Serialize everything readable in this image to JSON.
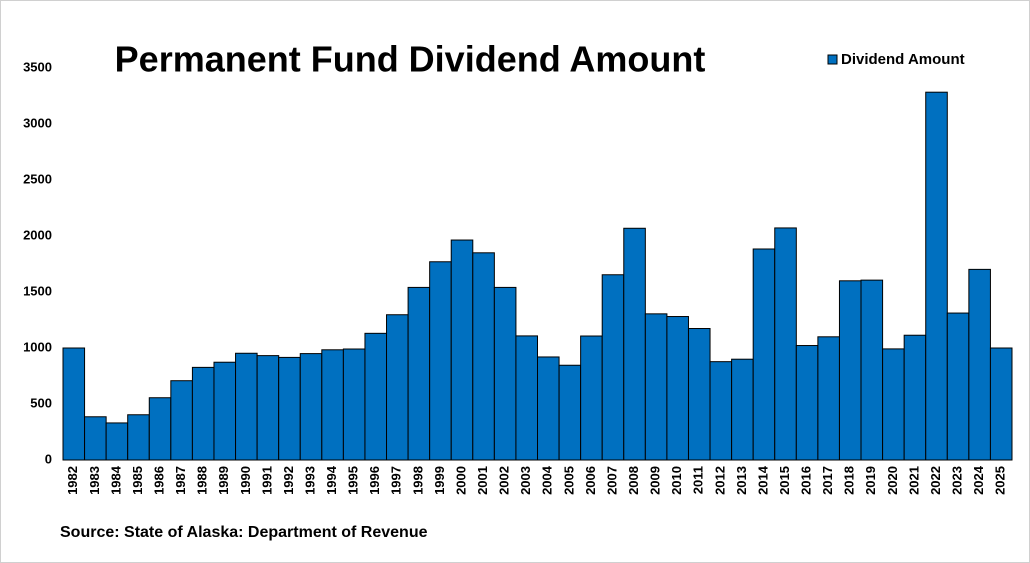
{
  "chart_data": {
    "type": "bar",
    "title": "Permanent Fund Dividend Amount",
    "source": "Source: State of Alaska: Department of Revenue",
    "categories": [
      "1982",
      "1983",
      "1984",
      "1985",
      "1986",
      "1987",
      "1988",
      "1989",
      "1990",
      "1991",
      "1992",
      "1993",
      "1994",
      "1995",
      "1996",
      "1997",
      "1998",
      "1999",
      "2000",
      "2001",
      "2002",
      "2003",
      "2004",
      "2005",
      "2006",
      "2007",
      "2008",
      "2009",
      "2010",
      "2011",
      "2012",
      "2013",
      "2014",
      "2015",
      "2016",
      "2017",
      "2018",
      "2019",
      "2020",
      "2021",
      "2022",
      "2023",
      "2024",
      "2025"
    ],
    "series": [
      {
        "name": "Dividend Amount",
        "color": "#0070c0",
        "values": [
          1000,
          386,
          331,
          404,
          556,
          708,
          827,
          873,
          953,
          932,
          916,
          950,
          984,
          991,
          1131,
          1297,
          1541,
          1770,
          1964,
          1850,
          1541,
          1108,
          920,
          846,
          1107,
          1654,
          2069,
          1305,
          1281,
          1174,
          878,
          900,
          1884,
          2072,
          1022,
          1100,
          1600,
          1606,
          992,
          1114,
          3284,
          1312,
          1702,
          1000
        ]
      }
    ],
    "ylim": [
      0,
      3500
    ],
    "yticks": [
      0,
      500,
      1000,
      1500,
      2000,
      2500,
      3000,
      3500
    ],
    "grid": false,
    "legend": "top-right"
  }
}
